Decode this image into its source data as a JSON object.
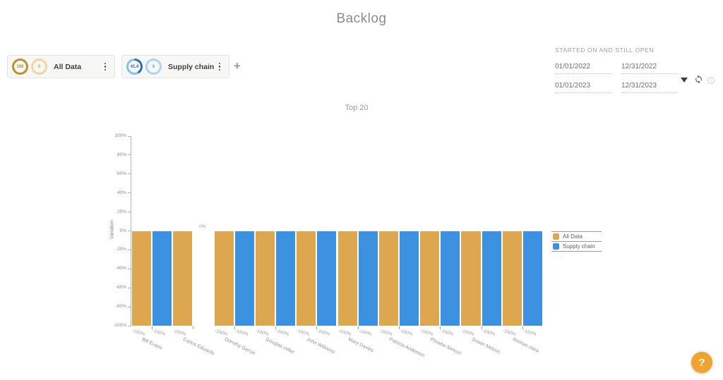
{
  "page": {
    "title": "Backlog"
  },
  "filters": {
    "chips": [
      {
        "label": "All Data",
        "primary_value": "100",
        "secondary_value": "0",
        "primary_pct": 100,
        "ring_dark": "#BE8F2E",
        "ring_light": "#EDD8A2",
        "primary_text": "#B78A2E",
        "secondary_ring": "#EDD8A2",
        "secondary_text": "#C5A558",
        "menu_icon": "kebab-menu-icon"
      },
      {
        "label": "Supply chain",
        "primary_value": "41.4",
        "secondary_value": "0",
        "primary_pct": 41.4,
        "ring_dark": "#2A6DB0",
        "ring_light": "#7FC2EC",
        "primary_text": "#2A6DB0",
        "secondary_ring": "#A9D6F2",
        "secondary_text": "#55A6DC",
        "menu_icon": "kebab-menu-icon"
      }
    ],
    "add_button_glyph": "+"
  },
  "date_panel": {
    "heading": "STARTED ON AND STILL OPEN",
    "rows": [
      {
        "start": "01/01/2022",
        "end": "12/31/2022"
      },
      {
        "start": "01/01/2023",
        "end": "12/31/2023"
      }
    ],
    "icons": [
      {
        "name": "funnel-filter-icon"
      },
      {
        "name": "refresh-icon"
      },
      {
        "name": "info-icon",
        "glyph": "i"
      }
    ]
  },
  "chart_data": {
    "type": "bar",
    "title": "Top 20",
    "ylabel": "Variation",
    "ylim": [
      -100,
      100
    ],
    "ytick_step": 20,
    "ytick_suffix": "%",
    "grid": false,
    "legend_position": "right",
    "categories": [
      "Bill Evans",
      "Carlos Eduardo",
      "Dorothy Garcia",
      "Douglas miller",
      "John Williams",
      "Mary Davies",
      "Patricia Anderson",
      "Phoebe Nelson",
      "Susan Nelson",
      "thomas clara"
    ],
    "series": [
      {
        "name": "All Data",
        "color": "#DDA750",
        "values": [
          -100,
          -100,
          -100,
          -100,
          -100,
          -100,
          -100,
          -100,
          -100,
          -100
        ]
      },
      {
        "name": "Supply chain",
        "color": "#3C91E0",
        "values": [
          -100,
          0,
          -100,
          -100,
          -100,
          -100,
          -100,
          -100,
          -100,
          -100
        ]
      }
    ],
    "bar_value_label_suffix": "%"
  },
  "help_button": {
    "glyph": "?",
    "color": "#F0A32F"
  }
}
